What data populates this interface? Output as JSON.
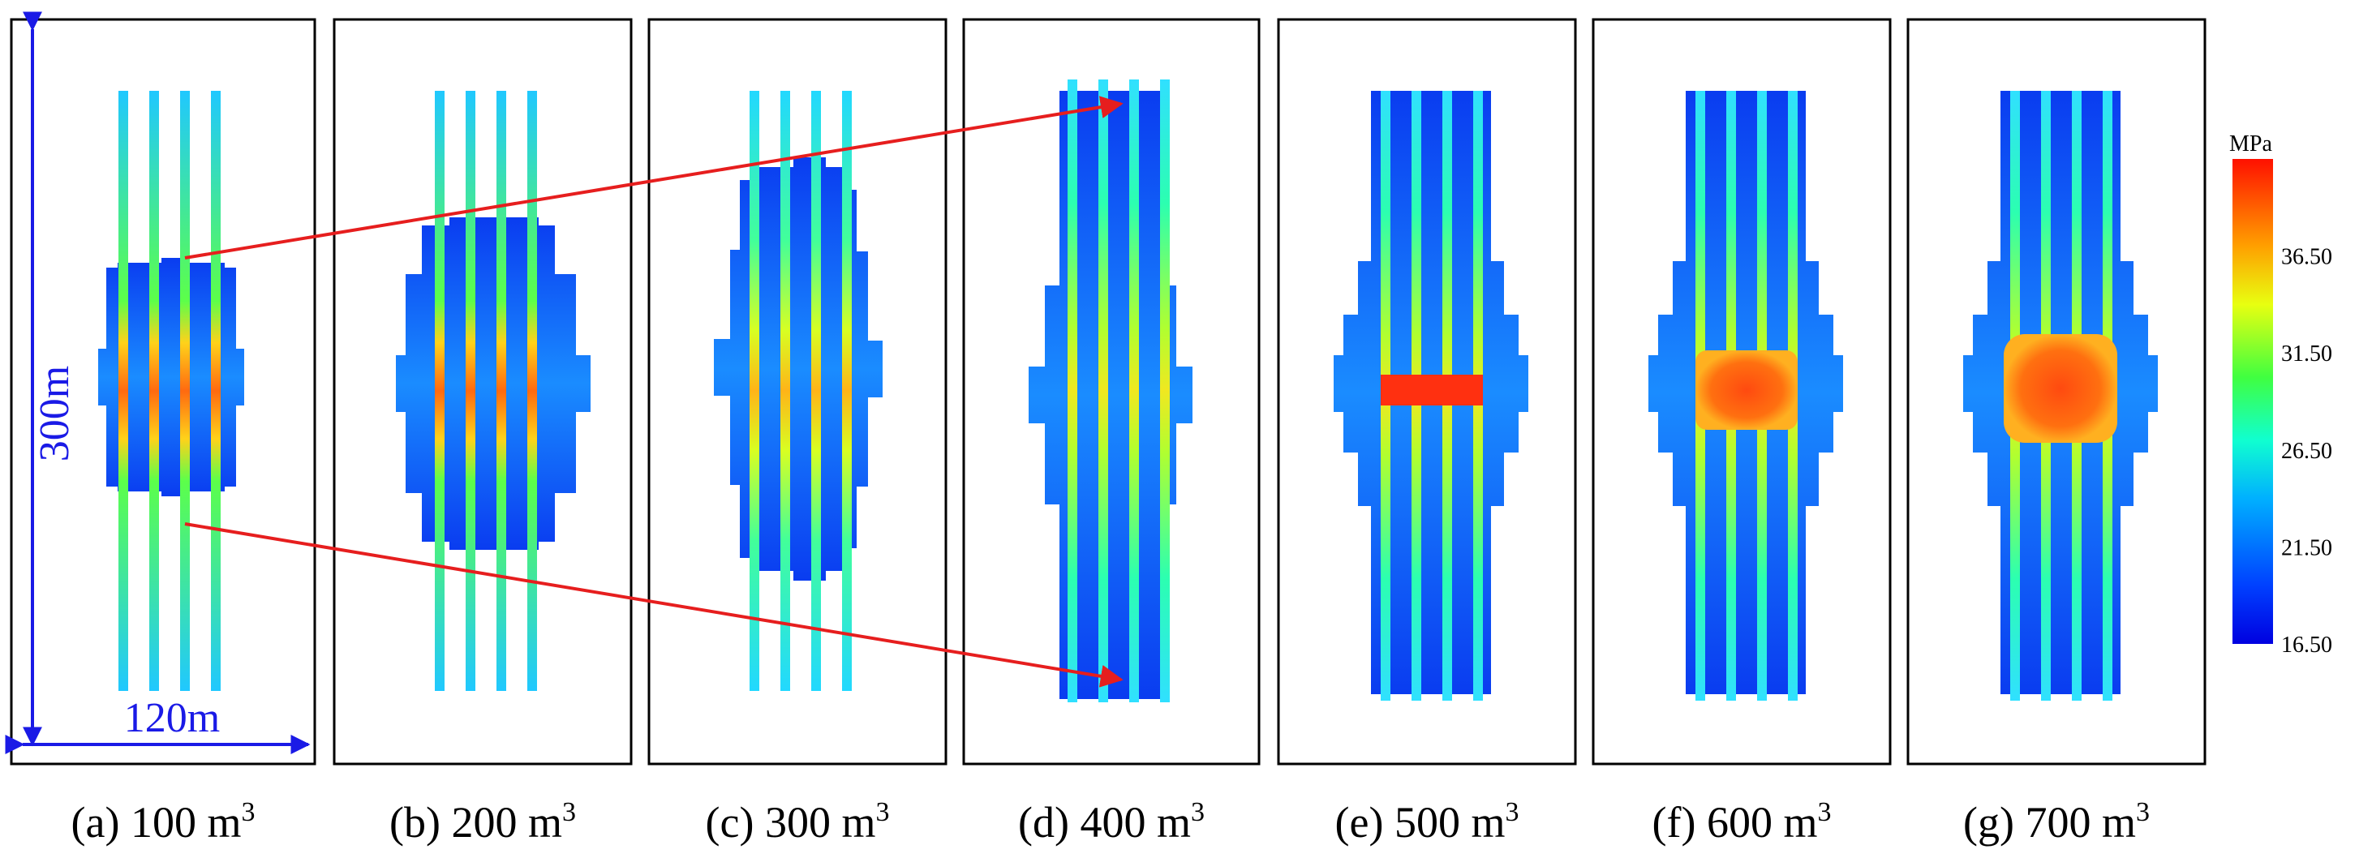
{
  "figure": {
    "panels": [
      {
        "label": "(a) 100 m",
        "sup": "3",
        "volume_m3": 100
      },
      {
        "label": "(b) 200 m",
        "sup": "3",
        "volume_m3": 200
      },
      {
        "label": "(c) 300 m",
        "sup": "3",
        "volume_m3": 300
      },
      {
        "label": "(d) 400 m",
        "sup": "3",
        "volume_m3": 400
      },
      {
        "label": "(e) 500 m",
        "sup": "3",
        "volume_m3": 500
      },
      {
        "label": "(f) 600 m",
        "sup": "3",
        "volume_m3": 600
      },
      {
        "label": "(g) 700 m",
        "sup": "3",
        "volume_m3": 700
      }
    ],
    "dimensions": {
      "height": "300m",
      "width": "120m"
    },
    "colorbar": {
      "unit": "MPa",
      "ticks": [
        "36.50",
        "31.50",
        "26.50",
        "21.50",
        "16.50"
      ],
      "min": 16.5,
      "max": 41.5
    },
    "colors": {
      "dimension_lines": "#1a1ae6",
      "arrows": "#e61e1e",
      "frame": "#000000"
    }
  }
}
